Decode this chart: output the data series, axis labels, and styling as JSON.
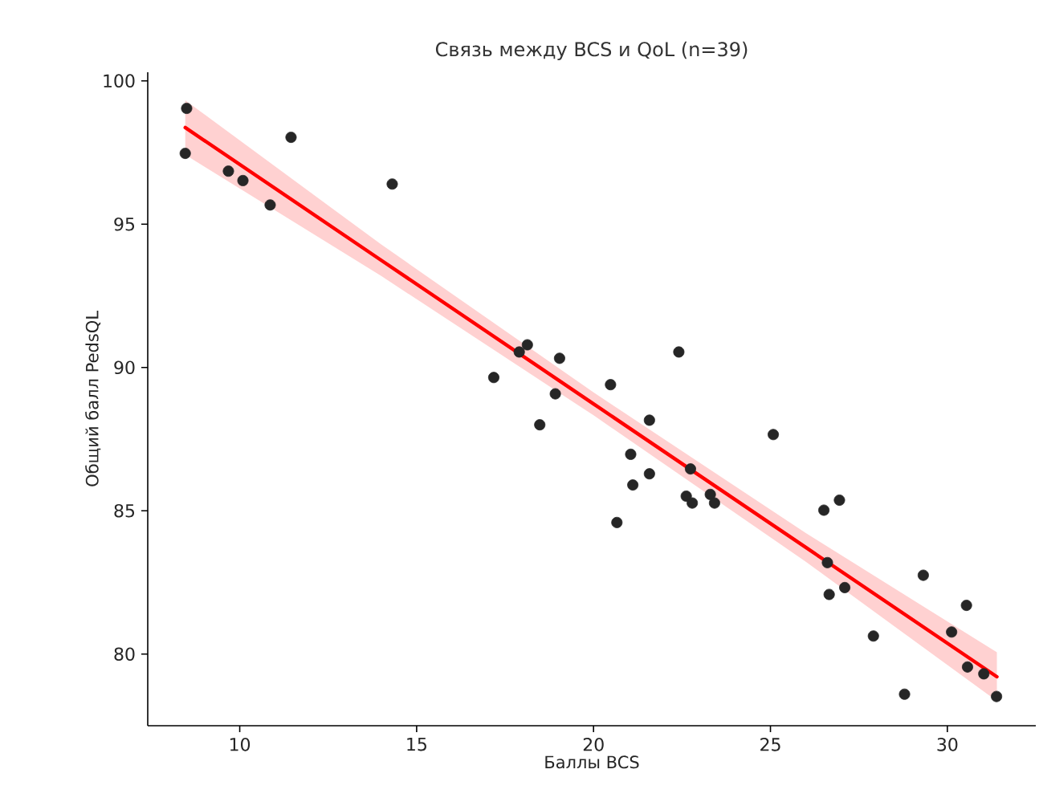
{
  "chart_data": {
    "type": "scatter",
    "title": "Связь между BCS и QoL (n=39)",
    "xlabel": "Баллы BCS",
    "ylabel": "Общий балл PedsQL",
    "xlim": [
      7.4,
      32.5
    ],
    "ylim": [
      77.5,
      100.3
    ],
    "xticks": [
      10,
      15,
      20,
      25,
      30
    ],
    "yticks": [
      80,
      85,
      90,
      95,
      100
    ],
    "grid": false,
    "series": [
      {
        "marker": "circle",
        "color": "#262626",
        "x": [
          8.5,
          8.46,
          9.68,
          10.09,
          10.86,
          11.45,
          14.31,
          17.18,
          17.9,
          18.13,
          19.04,
          18.92,
          18.48,
          20.48,
          22.41,
          21.58,
          21.05,
          21.11,
          21.58,
          20.66,
          22.74,
          22.62,
          22.79,
          23.3,
          23.42,
          25.08,
          26.51,
          26.95,
          26.61,
          26.66,
          27.1,
          27.91,
          28.79,
          29.32,
          30.12,
          30.54,
          30.57,
          31.03,
          31.39
        ],
        "values": [
          99.04,
          97.47,
          96.85,
          96.52,
          95.67,
          98.03,
          96.4,
          89.65,
          90.54,
          90.79,
          90.32,
          89.08,
          88.0,
          89.4,
          90.54,
          88.16,
          86.97,
          85.9,
          86.29,
          84.59,
          86.46,
          85.51,
          85.27,
          85.57,
          85.27,
          87.66,
          85.02,
          85.37,
          83.19,
          82.08,
          82.32,
          80.63,
          78.6,
          82.75,
          80.77,
          81.7,
          79.55,
          79.31,
          78.52
        ]
      },
      {
        "type": "line",
        "marker": "none",
        "color": "#ff0000",
        "x": [
          8.46,
          14,
          20,
          26,
          31.4
        ],
        "values": [
          98.37,
          93.74,
          88.73,
          83.72,
          79.21
        ],
        "lower": [
          97.42,
          93.19,
          88.33,
          83.22,
          78.36
        ],
        "upper": [
          99.32,
          94.29,
          89.13,
          84.22,
          80.06
        ]
      }
    ]
  }
}
